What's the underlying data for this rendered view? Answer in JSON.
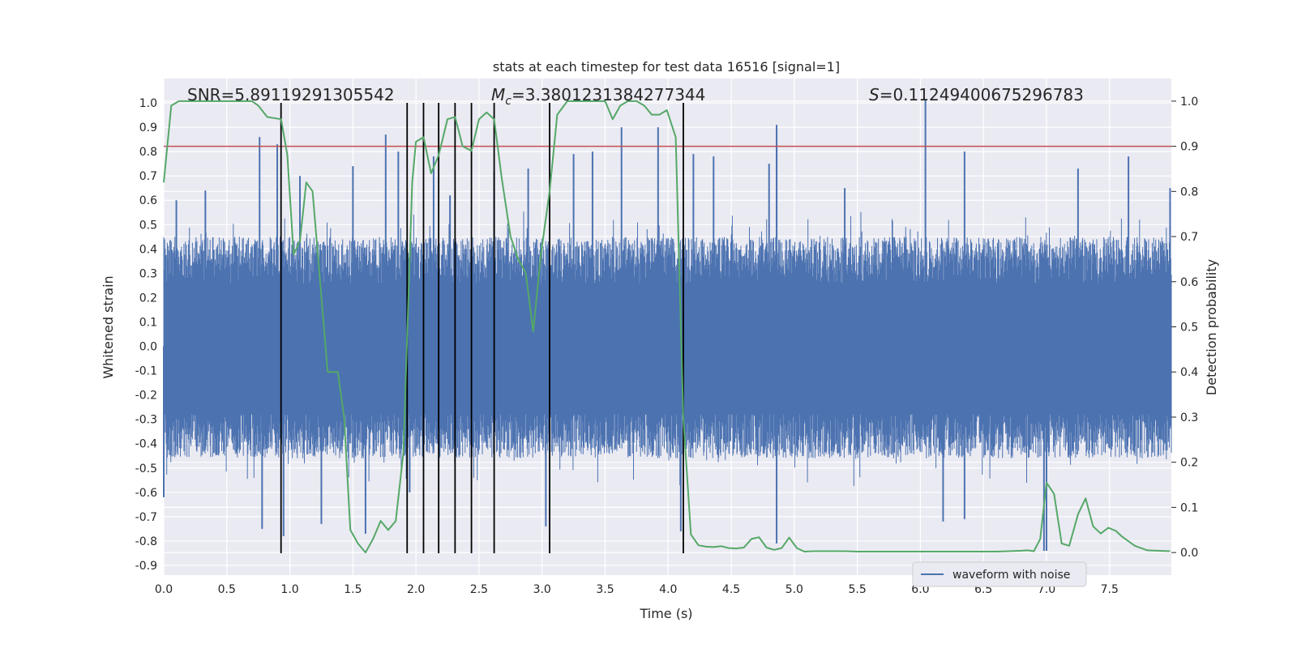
{
  "chart_data": {
    "type": "line",
    "title": "stats at each timestep for test data 16516 [signal=1]",
    "xlabel": "Time (s)",
    "ylabel": "Whitened strain",
    "y2label": "Detection probability",
    "xlim": [
      0,
      7.99
    ],
    "ylim": [
      -0.94,
      1.1
    ],
    "y2lim": [
      -0.05,
      1.05
    ],
    "x_ticks": [
      "0.0",
      "0.5",
      "1.0",
      "1.5",
      "2.0",
      "2.5",
      "3.0",
      "3.5",
      "4.0",
      "4.5",
      "5.0",
      "5.5",
      "6.0",
      "6.5",
      "7.0",
      "7.5"
    ],
    "y_ticks": [
      "1.0",
      "0.9",
      "0.8",
      "0.7",
      "0.6",
      "0.5",
      "0.4",
      "0.3",
      "0.2",
      "0.1",
      "0.0",
      "-0.1",
      "-0.2",
      "-0.3",
      "-0.4",
      "-0.5",
      "-0.6",
      "-0.7",
      "-0.8",
      "-0.9"
    ],
    "y2_ticks": [
      "1.0",
      "0.9",
      "0.8",
      "0.7",
      "0.6",
      "0.5",
      "0.4",
      "0.3",
      "0.2",
      "0.1",
      "0.0"
    ],
    "annotations": {
      "snr": "SNR=5.89119291305542",
      "mc_symbol": "M",
      "mc_sub": "c",
      "mc_value": "=3.3801231384277344",
      "s_symbol": "S",
      "s_value": "=0.11249400675296783"
    },
    "legend": {
      "label": "waveform with noise",
      "position": "lower-right"
    },
    "threshold": {
      "y2": 0.9,
      "color": "#c44e52"
    },
    "event_times": [
      0.93,
      1.93,
      2.06,
      2.18,
      2.31,
      2.44,
      2.62,
      3.06,
      4.12
    ],
    "event_ylim": [
      -0.85,
      1.0
    ],
    "waveform": {
      "name": "waveform with noise",
      "color": "#4c72b0",
      "envelope_upper": 0.45,
      "envelope_lower": -0.46,
      "spikes": [
        [
          0.0,
          -0.62
        ],
        [
          0.1,
          0.6
        ],
        [
          0.33,
          0.64
        ],
        [
          0.76,
          0.86
        ],
        [
          0.78,
          -0.75
        ],
        [
          0.9,
          0.83
        ],
        [
          0.95,
          -0.78
        ],
        [
          1.08,
          0.7
        ],
        [
          1.25,
          -0.73
        ],
        [
          1.5,
          0.74
        ],
        [
          1.6,
          -0.77
        ],
        [
          1.76,
          0.87
        ],
        [
          1.86,
          0.8
        ],
        [
          1.95,
          -0.6
        ],
        [
          2.14,
          0.78
        ],
        [
          2.27,
          0.62
        ],
        [
          2.62,
          0.72
        ],
        [
          2.89,
          0.73
        ],
        [
          3.03,
          -0.74
        ],
        [
          3.25,
          0.79
        ],
        [
          3.4,
          0.8
        ],
        [
          3.63,
          0.9
        ],
        [
          3.92,
          0.9
        ],
        [
          4.1,
          -0.76
        ],
        [
          4.2,
          0.79
        ],
        [
          4.36,
          0.78
        ],
        [
          4.8,
          0.75
        ],
        [
          4.86,
          0.91
        ],
        [
          4.86,
          -0.81
        ],
        [
          4.86,
          0.83
        ],
        [
          5.4,
          0.65
        ],
        [
          6.04,
          1.01
        ],
        [
          6.18,
          -0.72
        ],
        [
          6.35,
          0.8
        ],
        [
          6.35,
          -0.71
        ],
        [
          6.98,
          -0.84
        ],
        [
          7.0,
          -0.84
        ],
        [
          7.25,
          0.73
        ],
        [
          7.65,
          0.78
        ],
        [
          7.98,
          0.65
        ]
      ]
    },
    "probability": {
      "name": "detection probability",
      "color": "#55a868",
      "x": [
        0.0,
        0.06,
        0.12,
        0.2,
        0.3,
        0.4,
        0.5,
        0.6,
        0.7,
        0.75,
        0.82,
        0.93,
        0.98,
        1.03,
        1.08,
        1.13,
        1.18,
        1.24,
        1.3,
        1.38,
        1.43,
        1.48,
        1.54,
        1.6,
        1.66,
        1.72,
        1.78,
        1.84,
        1.9,
        1.97,
        2.0,
        2.06,
        2.12,
        2.18,
        2.25,
        2.31,
        2.37,
        2.44,
        2.5,
        2.56,
        2.62,
        2.68,
        2.75,
        2.81,
        2.87,
        2.93,
        2.99,
        3.06,
        3.12,
        3.2,
        3.3,
        3.4,
        3.5,
        3.56,
        3.62,
        3.68,
        3.75,
        3.81,
        3.87,
        3.93,
        3.99,
        4.06,
        4.12,
        4.18,
        4.24,
        4.3,
        4.36,
        4.42,
        4.48,
        4.54,
        4.6,
        4.66,
        4.72,
        4.78,
        4.84,
        4.9,
        4.96,
        5.02,
        5.08,
        5.15,
        5.2,
        5.3,
        5.4,
        5.5,
        5.6,
        5.8,
        6.0,
        6.2,
        6.4,
        6.6,
        6.7,
        6.8,
        6.85,
        6.9,
        6.95,
        7.0,
        7.06,
        7.12,
        7.18,
        7.25,
        7.31,
        7.37,
        7.43,
        7.49,
        7.55,
        7.6,
        7.7,
        7.8,
        7.98
      ],
      "y": [
        0.82,
        0.99,
        1.0,
        1.0,
        1.0,
        1.0,
        1.0,
        1.0,
        1.0,
        0.99,
        0.965,
        0.96,
        0.88,
        0.66,
        0.69,
        0.82,
        0.8,
        0.6,
        0.4,
        0.4,
        0.3,
        0.05,
        0.02,
        0.0,
        0.03,
        0.07,
        0.05,
        0.07,
        0.22,
        0.82,
        0.91,
        0.92,
        0.84,
        0.88,
        0.96,
        0.965,
        0.9,
        0.89,
        0.96,
        0.975,
        0.96,
        0.83,
        0.7,
        0.65,
        0.62,
        0.49,
        0.66,
        0.8,
        0.97,
        1.0,
        1.0,
        1.0,
        1.0,
        0.96,
        0.99,
        1.0,
        1.0,
        0.99,
        0.97,
        0.97,
        0.98,
        0.92,
        0.3,
        0.04,
        0.016,
        0.013,
        0.012,
        0.014,
        0.01,
        0.009,
        0.011,
        0.03,
        0.034,
        0.011,
        0.006,
        0.01,
        0.033,
        0.01,
        0.002,
        0.003,
        0.003,
        0.003,
        0.003,
        0.002,
        0.002,
        0.002,
        0.002,
        0.002,
        0.002,
        0.002,
        0.003,
        0.004,
        0.005,
        0.003,
        0.03,
        0.155,
        0.13,
        0.02,
        0.015,
        0.085,
        0.12,
        0.058,
        0.042,
        0.055,
        0.048,
        0.035,
        0.015,
        0.005,
        0.003
      ]
    }
  }
}
